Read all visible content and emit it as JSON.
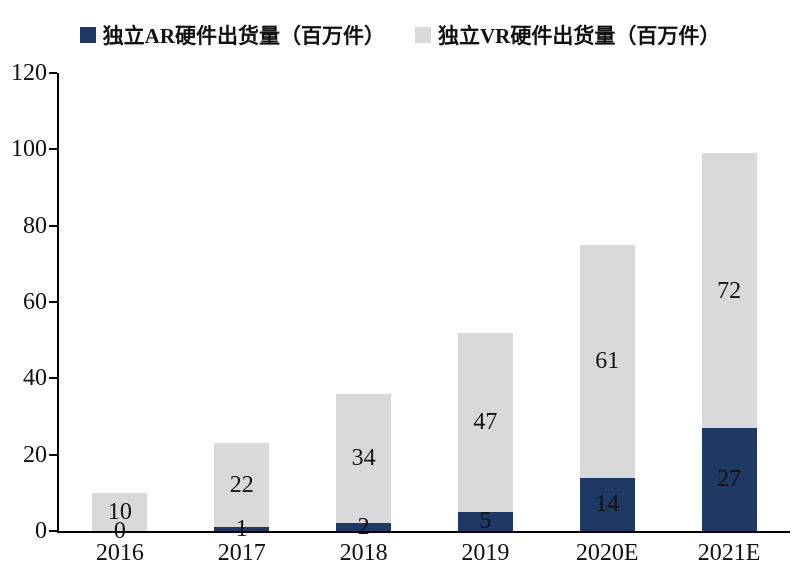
{
  "chart_data": {
    "type": "bar",
    "stacked": true,
    "title": "",
    "xlabel": "",
    "ylabel": "",
    "categories": [
      "2016",
      "2017",
      "2018",
      "2019",
      "2020E",
      "2021E"
    ],
    "series": [
      {
        "name": "独立AR硬件出货量（百万件）",
        "color": "#1f3864",
        "values": [
          0,
          1,
          2,
          5,
          14,
          27
        ]
      },
      {
        "name": "独立VR硬件出货量（百万件）",
        "color": "#d9d9d9",
        "values": [
          10,
          22,
          34,
          47,
          61,
          72
        ]
      }
    ],
    "ylim": [
      0,
      120
    ],
    "yticks": [
      0,
      20,
      40,
      60,
      80,
      100,
      120
    ],
    "grid": false,
    "legend_position": "top",
    "data_labels": true,
    "label_color": "#111111"
  },
  "legend": {
    "items": [
      {
        "label": "独立AR硬件出货量（百万件）",
        "color": "#1f3864",
        "swatch": "square-icon"
      },
      {
        "label": "独立VR硬件出货量（百万件）",
        "color": "#d9d9d9",
        "swatch": "square-icon"
      }
    ]
  }
}
